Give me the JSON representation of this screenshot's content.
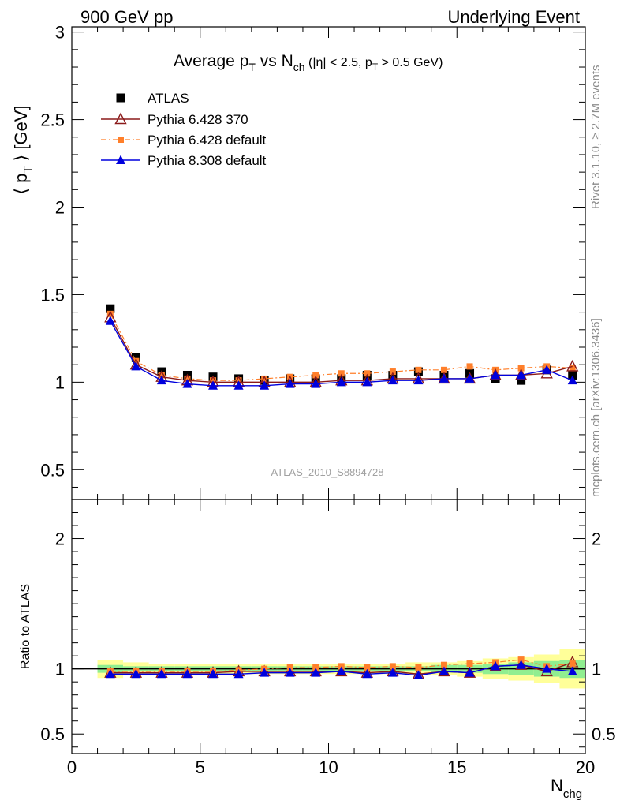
{
  "header": {
    "left": "900 GeV pp",
    "right": "Underlying Event"
  },
  "side_labels": {
    "rivet": "Rivet 3.1.10, ≥ 2.7M events",
    "mcplots": "mcplots.cern.ch [arXiv:1306.3436]"
  },
  "chart_data": [
    {
      "type": "scatter",
      "title": {
        "pre": "Average p",
        "sub1": "T",
        "mid": " vs N",
        "sub2": "ch",
        "cut": " (|η| < 2.5, p",
        "sub3": "T",
        "cut_end": " > 0.5 GeV)"
      },
      "ylabel": {
        "pre": "⟨ p",
        "sub": "T",
        "post": " ⟩ [GeV]"
      },
      "xlabel": {
        "pre": "N",
        "sub": "chg"
      },
      "watermark": "ATLAS_2010_S8894728",
      "xlim": [
        0,
        20
      ],
      "ylim": [
        0.33,
        3.03
      ],
      "yticks": [
        0.5,
        1,
        1.5,
        2,
        2.5,
        3
      ],
      "yticklabels": [
        "0.5",
        "1",
        "1.5",
        "2",
        "2.5",
        "3"
      ],
      "legend_position": "top-left",
      "x": [
        1.5,
        2.5,
        3.5,
        4.5,
        5.5,
        6.5,
        7.5,
        8.5,
        9.5,
        10.5,
        11.5,
        12.5,
        13.5,
        14.5,
        15.5,
        16.5,
        17.5,
        18.5,
        19.5
      ],
      "series": [
        {
          "name": "ATLAS",
          "color": "#000000",
          "marker": "square",
          "values": [
            1.42,
            1.14,
            1.06,
            1.04,
            1.03,
            1.02,
            1.01,
            1.02,
            1.02,
            1.02,
            1.04,
            1.04,
            1.06,
            1.04,
            1.05,
            1.02,
            1.01,
            1.07,
            1.04
          ]
        },
        {
          "name": "Pythia 6.428 370",
          "color": "#8b1a1a",
          "marker": "triangle-open",
          "values": [
            1.37,
            1.1,
            1.03,
            1.01,
            1.0,
            1.0,
            1.0,
            1.0,
            1.0,
            1.01,
            1.01,
            1.02,
            1.02,
            1.02,
            1.02,
            1.04,
            1.04,
            1.05,
            1.09
          ]
        },
        {
          "name": "Pythia 6.428 default",
          "color": "#ff7f2a",
          "marker": "square-small",
          "values": [
            1.39,
            1.12,
            1.04,
            1.02,
            1.01,
            1.01,
            1.02,
            1.03,
            1.04,
            1.05,
            1.05,
            1.06,
            1.07,
            1.07,
            1.09,
            1.07,
            1.08,
            1.09,
            1.08
          ]
        },
        {
          "name": "Pythia 8.308 default",
          "color": "#0000dd",
          "marker": "triangle",
          "values": [
            1.35,
            1.09,
            1.01,
            0.99,
            0.98,
            0.98,
            0.98,
            0.99,
            0.99,
            1.0,
            1.0,
            1.01,
            1.01,
            1.02,
            1.02,
            1.04,
            1.04,
            1.07,
            1.01
          ]
        }
      ]
    },
    {
      "type": "scatter",
      "ylabel": "Ratio to ATLAS",
      "xlim": [
        0,
        20
      ],
      "ylim": [
        0.35,
        2.3
      ],
      "yticks": [
        0.5,
        1,
        2
      ],
      "yticklabels": [
        "0.5",
        "1",
        "2"
      ],
      "xticks": [
        0,
        5,
        10,
        15,
        20
      ],
      "xticklabels": [
        "0",
        "5",
        "10",
        "15",
        "20"
      ],
      "band_edges": [
        1,
        2,
        3,
        4,
        5,
        6,
        7,
        8,
        9,
        10,
        11,
        12,
        13,
        14,
        15,
        16,
        17,
        18,
        19,
        20
      ],
      "band_stat": [
        0.03,
        0.02,
        0.02,
        0.02,
        0.02,
        0.02,
        0.02,
        0.02,
        0.02,
        0.02,
        0.02,
        0.02,
        0.02,
        0.03,
        0.03,
        0.04,
        0.05,
        0.06,
        0.07
      ],
      "band_total": [
        0.07,
        0.05,
        0.04,
        0.04,
        0.04,
        0.04,
        0.04,
        0.04,
        0.04,
        0.04,
        0.04,
        0.04,
        0.05,
        0.05,
        0.06,
        0.08,
        0.09,
        0.11,
        0.15
      ],
      "band_colors": {
        "stat": "#90ee90",
        "total": "#ffff99"
      },
      "series": [
        {
          "name": "Pythia 6.428 370",
          "values": [
            0.97,
            0.97,
            0.97,
            0.97,
            0.97,
            0.98,
            0.98,
            0.98,
            0.98,
            0.98,
            0.97,
            0.98,
            0.96,
            0.98,
            0.97,
            1.02,
            1.03,
            0.98,
            1.05
          ]
        },
        {
          "name": "Pythia 6.428 default",
          "values": [
            0.98,
            0.98,
            0.98,
            0.98,
            0.98,
            0.99,
            1.0,
            1.01,
            1.01,
            1.02,
            1.01,
            1.02,
            1.01,
            1.03,
            1.04,
            1.05,
            1.07,
            1.02,
            1.04
          ]
        },
        {
          "name": "Pythia 8.308 default",
          "values": [
            0.96,
            0.96,
            0.96,
            0.96,
            0.96,
            0.96,
            0.97,
            0.97,
            0.97,
            0.98,
            0.96,
            0.97,
            0.95,
            0.98,
            0.97,
            1.02,
            1.03,
            1.0,
            0.98
          ]
        }
      ]
    }
  ]
}
